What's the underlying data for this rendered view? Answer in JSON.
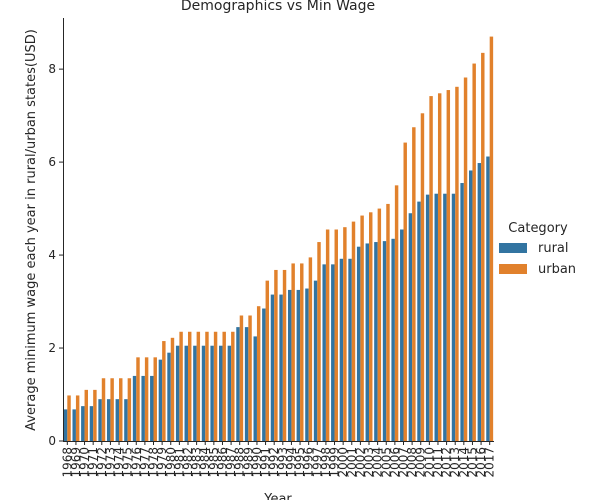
{
  "chart_data": {
    "type": "bar",
    "title": "Demographics vs Min Wage",
    "xlabel": "Year",
    "ylabel": "Average minimum wage each year in rural/urban states(USD)",
    "ylim": [
      0,
      9.1
    ],
    "yticks": [
      0,
      2,
      4,
      6,
      8
    ],
    "legend": {
      "title": "Category",
      "placement": "right"
    },
    "categories": [
      "1968",
      "1969",
      "1970",
      "1971",
      "1972",
      "1973",
      "1974",
      "1975",
      "1976",
      "1977",
      "1978",
      "1979",
      "1980",
      "1981",
      "1982",
      "1983",
      "1984",
      "1985",
      "1986",
      "1987",
      "1988",
      "1989",
      "1990",
      "1991",
      "1992",
      "1993",
      "1994",
      "1995",
      "1996",
      "1997",
      "1998",
      "1999",
      "2000",
      "2001",
      "2002",
      "2003",
      "2004",
      "2005",
      "2006",
      "2007",
      "2008",
      "2009",
      "2010",
      "2011",
      "2012",
      "2013",
      "2014",
      "2015",
      "2016",
      "2017"
    ],
    "series": [
      {
        "name": "rural",
        "color": "#3274a1",
        "values": [
          0.68,
          0.68,
          0.75,
          0.75,
          0.9,
          0.9,
          0.9,
          0.9,
          1.4,
          1.4,
          1.4,
          1.75,
          1.9,
          2.05,
          2.05,
          2.05,
          2.05,
          2.05,
          2.05,
          2.05,
          2.45,
          2.45,
          2.25,
          2.85,
          3.15,
          3.15,
          3.25,
          3.25,
          3.28,
          3.45,
          3.8,
          3.8,
          3.92,
          3.92,
          4.18,
          4.25,
          4.28,
          4.3,
          4.35,
          4.55,
          4.9,
          5.15,
          5.3,
          5.32,
          5.32,
          5.32,
          5.55,
          5.82,
          5.98,
          6.12
        ]
      },
      {
        "name": "urban",
        "color": "#e1812c",
        "values": [
          0.98,
          0.98,
          1.1,
          1.1,
          1.35,
          1.35,
          1.35,
          1.35,
          1.8,
          1.8,
          1.8,
          2.15,
          2.22,
          2.35,
          2.35,
          2.35,
          2.35,
          2.35,
          2.35,
          2.35,
          2.7,
          2.7,
          2.9,
          3.45,
          3.68,
          3.68,
          3.82,
          3.82,
          3.95,
          4.28,
          4.55,
          4.55,
          4.6,
          4.72,
          4.85,
          4.92,
          5.0,
          5.1,
          5.5,
          6.42,
          6.75,
          7.05,
          7.42,
          7.48,
          7.55,
          7.62,
          7.82,
          8.12,
          8.35,
          8.7
        ]
      }
    ]
  }
}
